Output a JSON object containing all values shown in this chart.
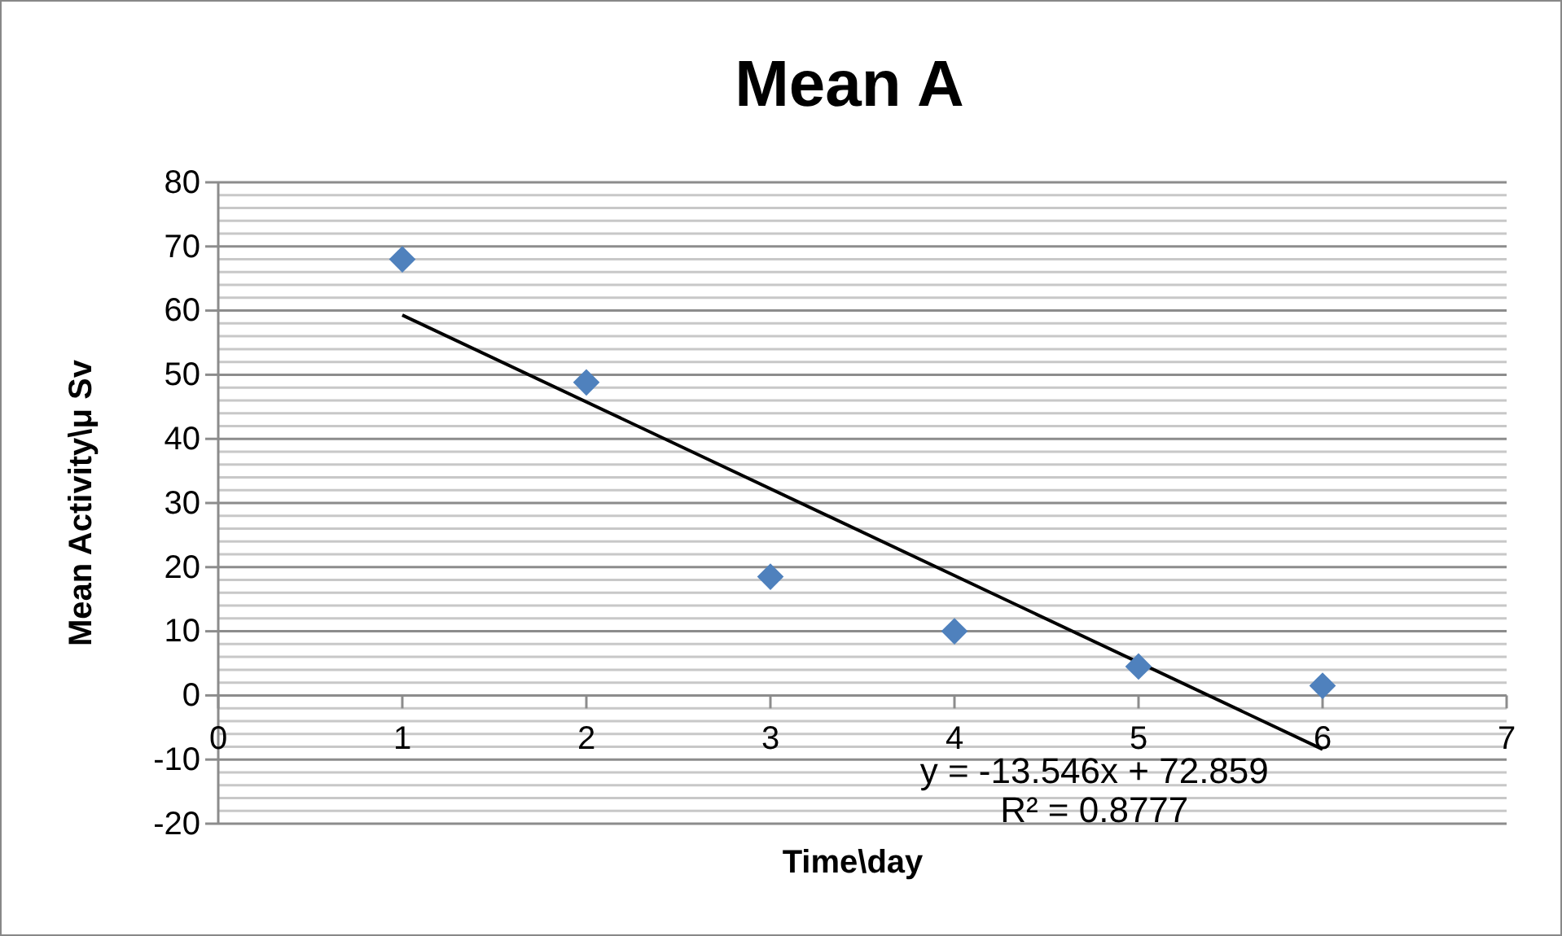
{
  "chart_data": {
    "type": "scatter",
    "title": "Mean A",
    "xlabel": "Time\\day",
    "ylabel": "Mean Activity\\μ Sv",
    "x": [
      1,
      2,
      3,
      4,
      5,
      6
    ],
    "series": [
      {
        "color": "#4f81bd",
        "marker": "diamond",
        "values": [
          68,
          48.8,
          18.5,
          10,
          4.5,
          1.5
        ]
      },
      {
        "type": "line",
        "color": "#000000",
        "marker": "none",
        "line_style": "solid",
        "x": [
          1,
          6
        ],
        "values": [
          59.3,
          -8.4
        ]
      }
    ],
    "xlim": [
      0,
      7
    ],
    "xticks": [
      0,
      1,
      2,
      3,
      4,
      5,
      6,
      7
    ],
    "ylim": [
      -20,
      80
    ],
    "yticks": [
      -20,
      {
        "value": -18,
        "label": null
      },
      {
        "value": -16,
        "label": null
      },
      {
        "value": -14,
        "label": null
      },
      {
        "value": -12,
        "label": null
      },
      -10,
      {
        "value": -8,
        "label": null
      },
      {
        "value": -6,
        "label": null
      },
      {
        "value": -4,
        "label": null
      },
      {
        "value": -2,
        "label": null
      },
      0,
      {
        "value": 2,
        "label": null
      },
      {
        "value": 4,
        "label": null
      },
      {
        "value": 6,
        "label": null
      },
      {
        "value": 8,
        "label": null
      },
      10,
      {
        "value": 12,
        "label": null
      },
      {
        "value": 14,
        "label": null
      },
      {
        "value": 16,
        "label": null
      },
      {
        "value": 18,
        "label": null
      },
      20,
      {
        "value": 22,
        "label": null
      },
      {
        "value": 24,
        "label": null
      },
      {
        "value": 26,
        "label": null
      },
      {
        "value": 28,
        "label": null
      },
      30,
      {
        "value": 32,
        "label": null
      },
      {
        "value": 34,
        "label": null
      },
      {
        "value": 36,
        "label": null
      },
      {
        "value": 38,
        "label": null
      },
      40,
      {
        "value": 42,
        "label": null
      },
      {
        "value": 44,
        "label": null
      },
      {
        "value": 46,
        "label": null
      },
      {
        "value": 48,
        "label": null
      },
      50,
      {
        "value": 52,
        "label": null
      },
      {
        "value": 54,
        "label": null
      },
      {
        "value": 56,
        "label": null
      },
      {
        "value": 58,
        "label": null
      },
      60,
      {
        "value": 62,
        "label": null
      },
      {
        "value": 64,
        "label": null
      },
      {
        "value": 66,
        "label": null
      },
      {
        "value": 68,
        "label": null
      },
      70,
      {
        "value": 72,
        "label": null
      },
      {
        "value": 74,
        "label": null
      },
      {
        "value": 76,
        "label": null
      },
      {
        "value": 78,
        "label": null
      },
      80
    ],
    "grid": "y",
    "annotations": [
      "y = -13.546x + 72.859",
      "R² = 0.8777"
    ]
  }
}
